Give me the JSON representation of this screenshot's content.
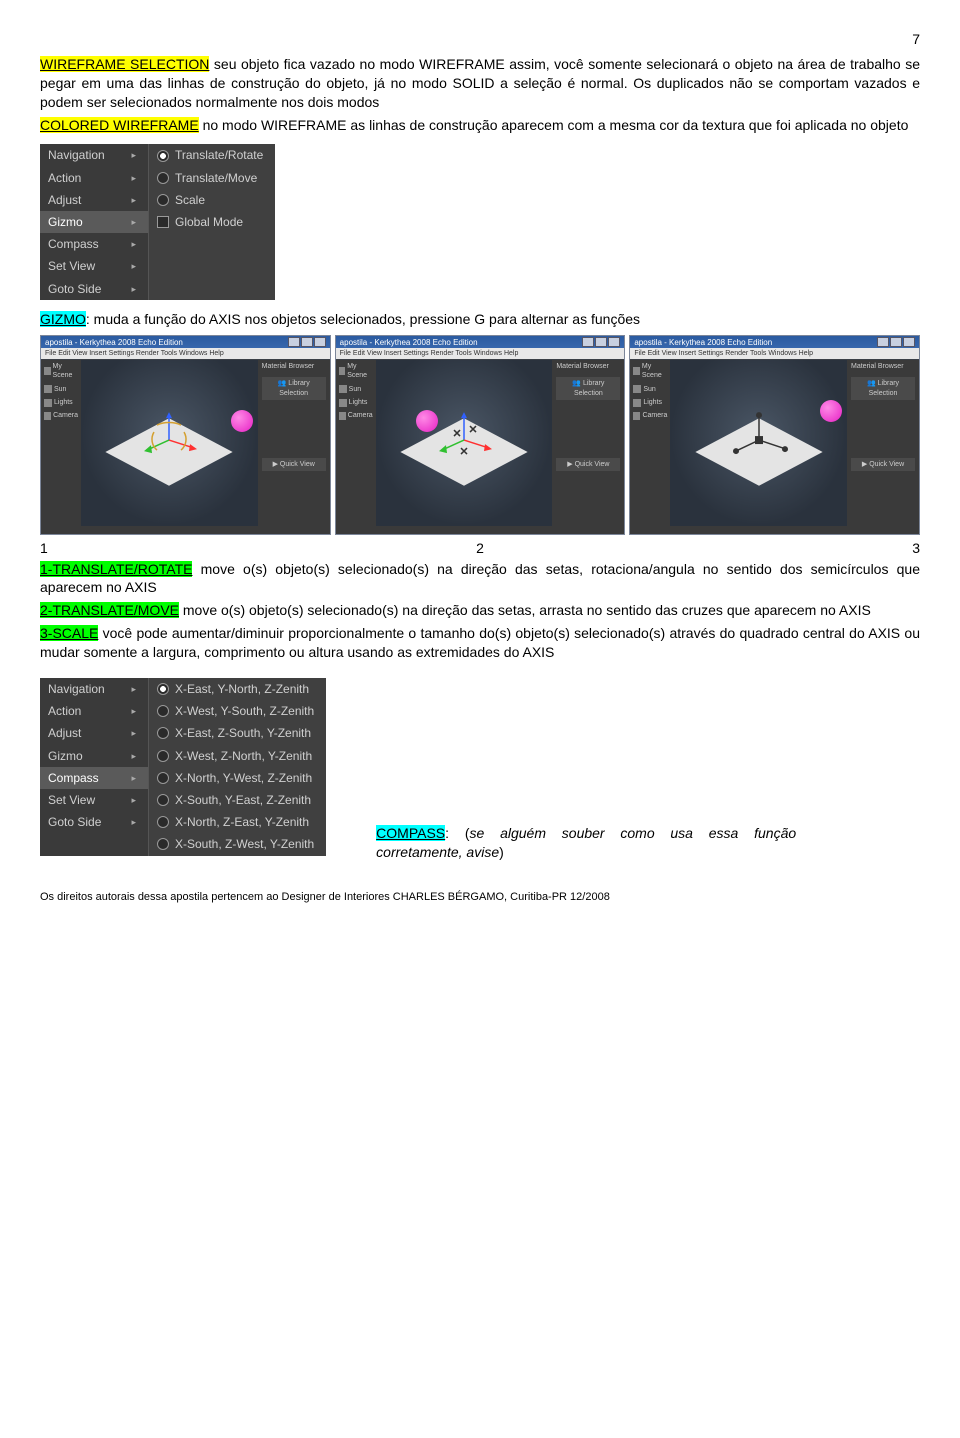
{
  "page_number": "7",
  "p1": {
    "t1": "WIREFRAME SELECTION",
    "t2": " seu objeto fica vazado no modo WIREFRAME assim, você somente selecionará o objeto na área de trabalho se pegar em uma das linhas de construção do objeto, já no modo SOLID a seleção é normal. Os duplicados não se comportam vazados e podem ser selecionados normalmente nos dois modos"
  },
  "p2": {
    "t1": "COLORED WIREFRAME",
    "t2": " no modo WIREFRAME as linhas de construção aparecem com a mesma cor da textura que foi aplicada no objeto"
  },
  "menu1": {
    "left": [
      "Navigation",
      "Action",
      "Adjust",
      "Gizmo",
      "Compass",
      "Set View",
      "Goto Side"
    ],
    "selected": "Gizmo",
    "right": [
      {
        "label": "Translate/Rotate",
        "on": true,
        "type": "radio"
      },
      {
        "label": "Translate/Move",
        "on": false,
        "type": "radio"
      },
      {
        "label": "Scale",
        "on": false,
        "type": "radio"
      },
      {
        "label": "Global Mode",
        "on": false,
        "type": "chk"
      }
    ]
  },
  "p3": {
    "t1": "GIZMO",
    "t2": ": muda a função do AXIS nos objetos selecionados, pressione G para alternar as funções"
  },
  "thumbs": {
    "title": "apostila - Kerkythea 2008 Echo Edition",
    "menubar": "File  Edit  View  Insert  Settings  Render  Tools  Windows  Help",
    "left_items": [
      "My Scene",
      "Sun",
      "Lights",
      "Camera"
    ],
    "right_head": "Material Browser",
    "right_b1": "Library Selection",
    "right_b2": "Quick View",
    "ball_color": "#e61fc4"
  },
  "nums": {
    "a": "1",
    "b": "2",
    "c": "3"
  },
  "p4": {
    "t1": "1-TRANSLATE/ROTATE",
    "t2": " move o(s) objeto(s) selecionado(s) na direção das setas, rotaciona/angula no sentido dos semicírculos que aparecem no AXIS"
  },
  "p5": {
    "t1": "2-TRANSLATE/MOVE",
    "t2": " move o(s) objeto(s) selecionado(s) na direção das setas, arrasta no sentido das cruzes que aparecem no AXIS"
  },
  "p6": {
    "t1": "3-SCALE",
    "t2": " você pode aumentar/diminuir proporcionalmente o tamanho do(s) objeto(s) selecionado(s) através do quadrado central do AXIS ou mudar somente a largura, comprimento ou altura usando as extremidades do AXIS"
  },
  "menu2": {
    "left": [
      "Navigation",
      "Action",
      "Adjust",
      "Gizmo",
      "Compass",
      "Set View",
      "Goto Side"
    ],
    "selected": "Compass",
    "right": [
      {
        "label": "X-East, Y-North, Z-Zenith",
        "on": true
      },
      {
        "label": "X-West, Y-South, Z-Zenith",
        "on": false
      },
      {
        "label": "X-East, Z-South, Y-Zenith",
        "on": false
      },
      {
        "label": "X-West, Z-North, Y-Zenith",
        "on": false
      },
      {
        "label": "X-North, Y-West, Z-Zenith",
        "on": false
      },
      {
        "label": "X-South, Y-East, Z-Zenith",
        "on": false
      },
      {
        "label": "X-North, Z-East, Y-Zenith",
        "on": false
      },
      {
        "label": "X-South, Z-West, Y-Zenith",
        "on": false
      }
    ]
  },
  "p7": {
    "t1": "COMPASS",
    "t2": ": (",
    "t3": "se alguém souber como usa essa função corretamente, avise",
    "t4": ")"
  },
  "footer": "Os direitos autorais dessa apostila pertencem ao Designer de Interiores CHARLES BÉRGAMO, Curitiba-PR 12/2008"
}
